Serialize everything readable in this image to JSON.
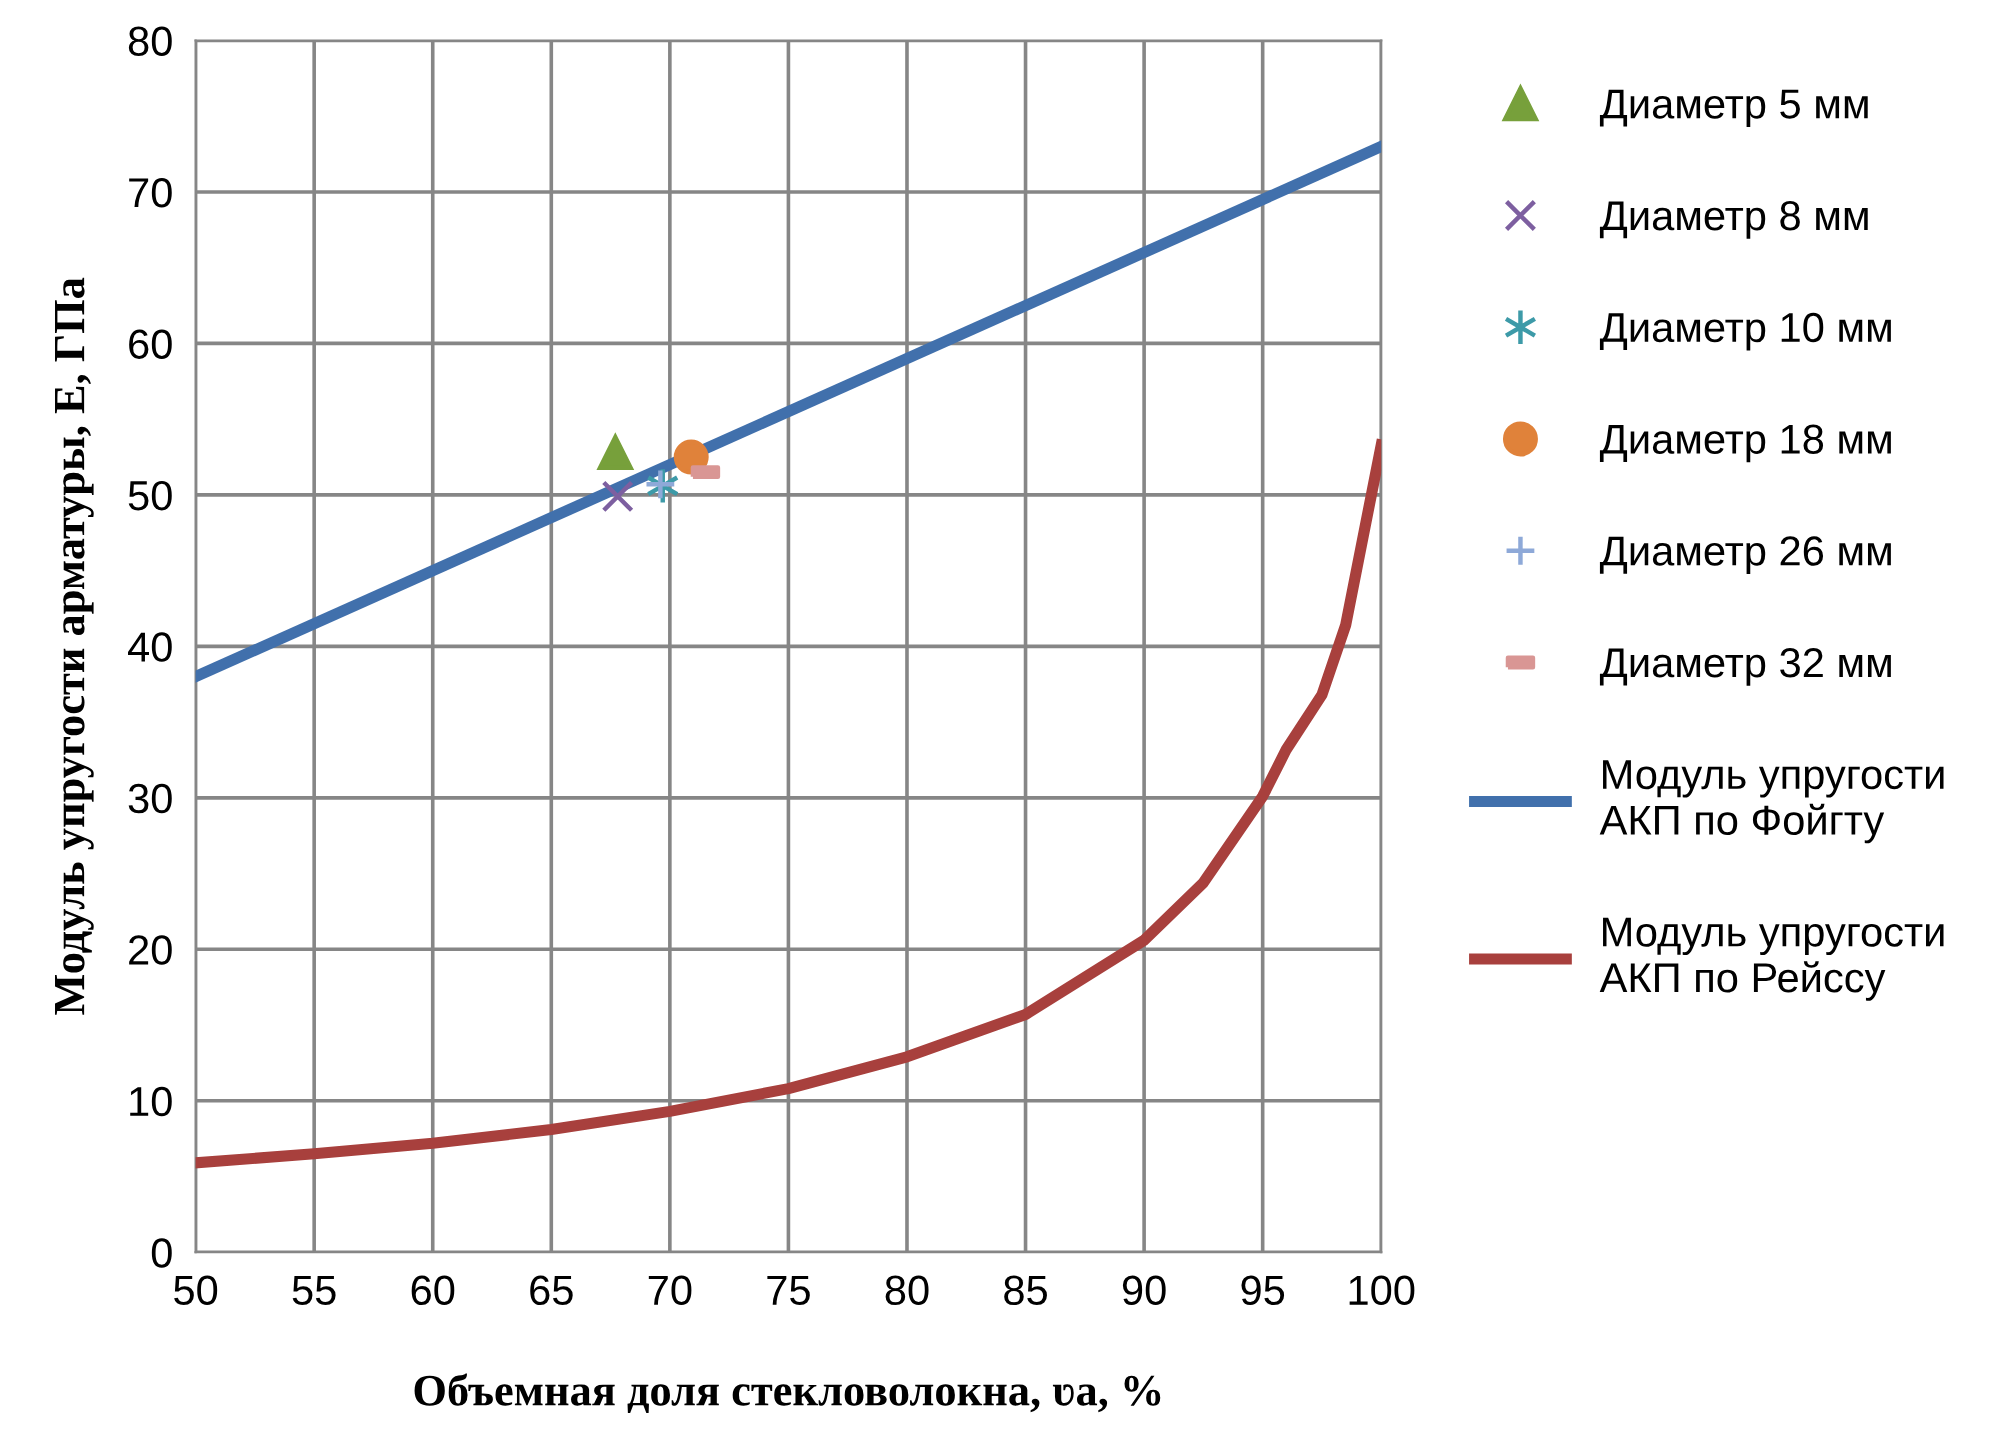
{
  "chart_data": {
    "type": "line",
    "xlabel": "Объемная доля стекловолокна, ʋa, %",
    "ylabel": "Модуль упругости арматуры, Е, ГПа",
    "xlim": [
      50,
      100
    ],
    "xticks": [
      50,
      55,
      60,
      65,
      70,
      75,
      80,
      85,
      90,
      95,
      100
    ],
    "ylim": [
      0,
      80
    ],
    "yticks": [
      0,
      10,
      20,
      30,
      40,
      50,
      60,
      70,
      80
    ],
    "grid": true,
    "legend": "right",
    "series": [
      {
        "name": "Диаметр 5 мм",
        "type": "scatter",
        "marker": "triangle",
        "color": "#77a03b",
        "x": [
          67.7
        ],
        "values": [
          52.8
        ]
      },
      {
        "name": "Диаметр 8 мм",
        "type": "scatter",
        "marker": "cross",
        "color": "#7d5fa0",
        "x": [
          67.8
        ],
        "values": [
          49.9
        ]
      },
      {
        "name": "Диаметр 10 мм",
        "type": "scatter",
        "marker": "cross",
        "color": "#3d9aa8",
        "x": [
          69.7
        ],
        "values": [
          50.6
        ]
      },
      {
        "name": "Диаметр 18 мм",
        "type": "scatter",
        "marker": "circle",
        "color": "#e0823a",
        "x": [
          70.9
        ],
        "values": [
          52.5
        ]
      },
      {
        "name": "Диаметр 26 мм",
        "type": "scatter",
        "marker": "cross",
        "color": "#8ea9d8",
        "x": [
          69.6
        ],
        "values": [
          50.7
        ]
      },
      {
        "name": "Диаметр 32 мм",
        "type": "scatter",
        "marker": "square",
        "color": "#d99694",
        "x": [
          71.5
        ],
        "values": [
          51.5
        ]
      },
      {
        "name": "Модуль упругости АКП по Фойгту",
        "marker": "none",
        "color": "#4170ac",
        "x": [
          50,
          100
        ],
        "values": [
          38,
          73
        ]
      },
      {
        "name": "Модуль упругости АКП по Рейссу",
        "marker": "none",
        "color": "#a8403d",
        "x": [
          50,
          55,
          60,
          65,
          70,
          75,
          80,
          85,
          90,
          92.5,
          95,
          96,
          97.5,
          98.5,
          100
        ],
        "values": [
          5.9,
          6.5,
          7.2,
          8.1,
          9.3,
          10.8,
          12.9,
          15.7,
          20.6,
          24.4,
          30.1,
          33.2,
          36.8,
          41.4,
          53.3
        ]
      }
    ]
  }
}
